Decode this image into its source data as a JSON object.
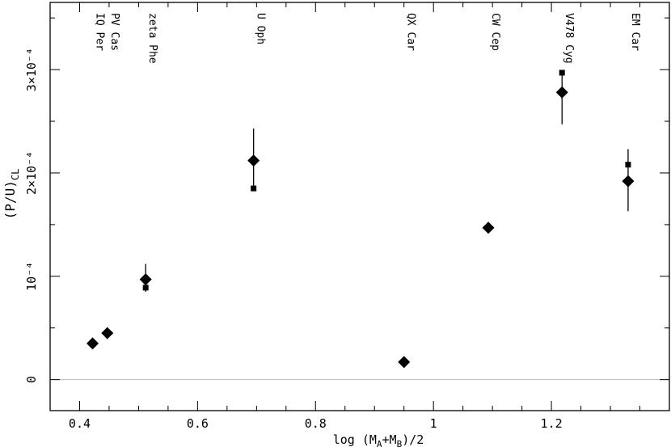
{
  "chart_data": {
    "type": "scatter",
    "title": "",
    "xlabel": "log (M_A+M_B)/2",
    "ylabel": "(P/U)_CL",
    "xlim": [
      0.35,
      1.4
    ],
    "ylim": [
      -3e-05,
      0.000365
    ],
    "x_ticks": [
      {
        "value": 0.4,
        "label": "0.4"
      },
      {
        "value": 0.6,
        "label": "0.6"
      },
      {
        "value": 0.8,
        "label": "0.8"
      },
      {
        "value": 1.0,
        "label": "1"
      },
      {
        "value": 1.2,
        "label": "1.2"
      }
    ],
    "y_ticks": [
      {
        "value": 0,
        "label": "0"
      },
      {
        "value": 0.0001,
        "label": "10⁻⁴"
      },
      {
        "value": 0.0002,
        "label": "2×10⁻⁴"
      },
      {
        "value": 0.0003,
        "label": "3×10⁻⁴"
      }
    ],
    "horizontal_line_at": 0,
    "stars": [
      {
        "label": "IQ Per",
        "x": 0.422,
        "y": 3.5e-05,
        "yerr": null,
        "alt_y": null
      },
      {
        "label": "PV Cas",
        "x": 0.447,
        "y": 4.5e-05,
        "yerr": null,
        "alt_y": null
      },
      {
        "label": "zeta Phe",
        "x": 0.512,
        "y": 9.7e-05,
        "yerr": [
          8.5e-05,
          0.000112
        ],
        "alt_y": 8.9e-05
      },
      {
        "label": "U Oph",
        "x": 0.695,
        "y": 0.000212,
        "yerr": [
          0.000183,
          0.000243
        ],
        "alt_y": 0.000185
      },
      {
        "label": "QX Car",
        "x": 0.95,
        "y": 1.7e-05,
        "yerr": null,
        "alt_y": null
      },
      {
        "label": "CW Cep",
        "x": 1.093,
        "y": 0.000147,
        "yerr": null,
        "alt_y": null
      },
      {
        "label": "V478 Cyg",
        "x": 1.218,
        "y": 0.000278,
        "yerr": [
          0.000247,
          0.000295
        ],
        "alt_y": 0.000297
      },
      {
        "label": "EM Car",
        "x": 1.33,
        "y": 0.000192,
        "yerr": [
          0.000163,
          0.000223
        ],
        "alt_y": 0.000208
      }
    ]
  }
}
